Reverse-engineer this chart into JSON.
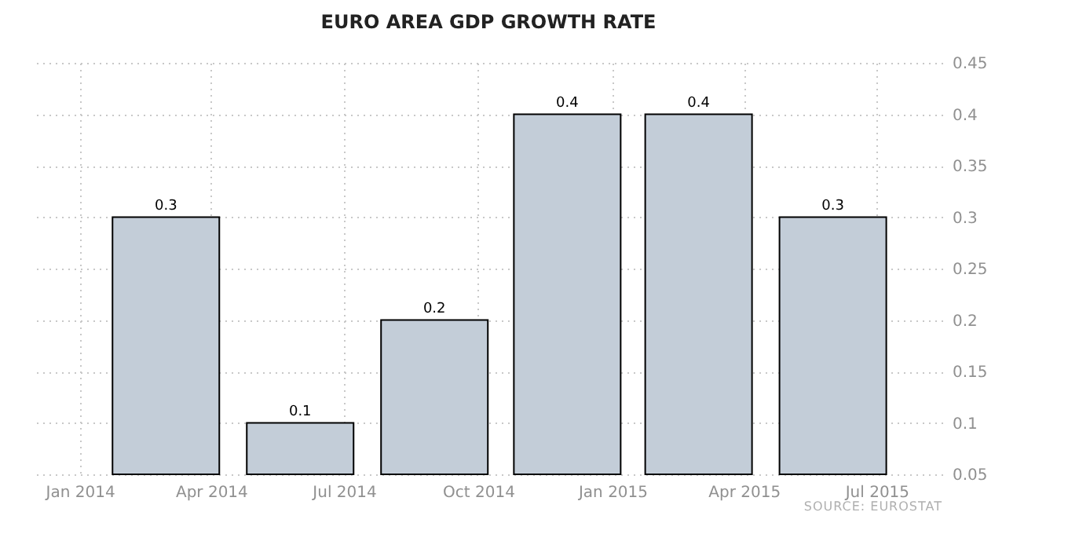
{
  "chart_data": {
    "type": "bar",
    "title": "EURO AREA GDP GROWTH RATE",
    "x": [
      "2014-03",
      "2014-06",
      "2014-09",
      "2014-12",
      "2015-03",
      "2015-06"
    ],
    "values": [
      0.3,
      0.1,
      0.2,
      0.4,
      0.4,
      0.3
    ],
    "color": "#c3cdd8",
    "data_labels": true,
    "xlim": [
      "2013-12-01",
      "2015-08-15"
    ],
    "xticks": [
      {
        "value": "2014-01",
        "label": "Jan 2014"
      },
      {
        "value": "2014-04",
        "label": "Apr 2014"
      },
      {
        "value": "2014-07",
        "label": "Jul 2014"
      },
      {
        "value": "2014-10",
        "label": "Oct 2014"
      },
      {
        "value": "2015-01",
        "label": "Jan 2015"
      },
      {
        "value": "2015-04",
        "label": "Apr 2015"
      },
      {
        "value": "2015-07",
        "label": "Jul 2015"
      }
    ],
    "ylim": [
      0.05,
      0.45
    ],
    "yticks": [
      0.05,
      0.1,
      0.15,
      0.2,
      0.25,
      0.3,
      0.35,
      0.4,
      0.45
    ],
    "grid": true,
    "annotations": [
      "SOURCE: EUROSTAT"
    ]
  }
}
